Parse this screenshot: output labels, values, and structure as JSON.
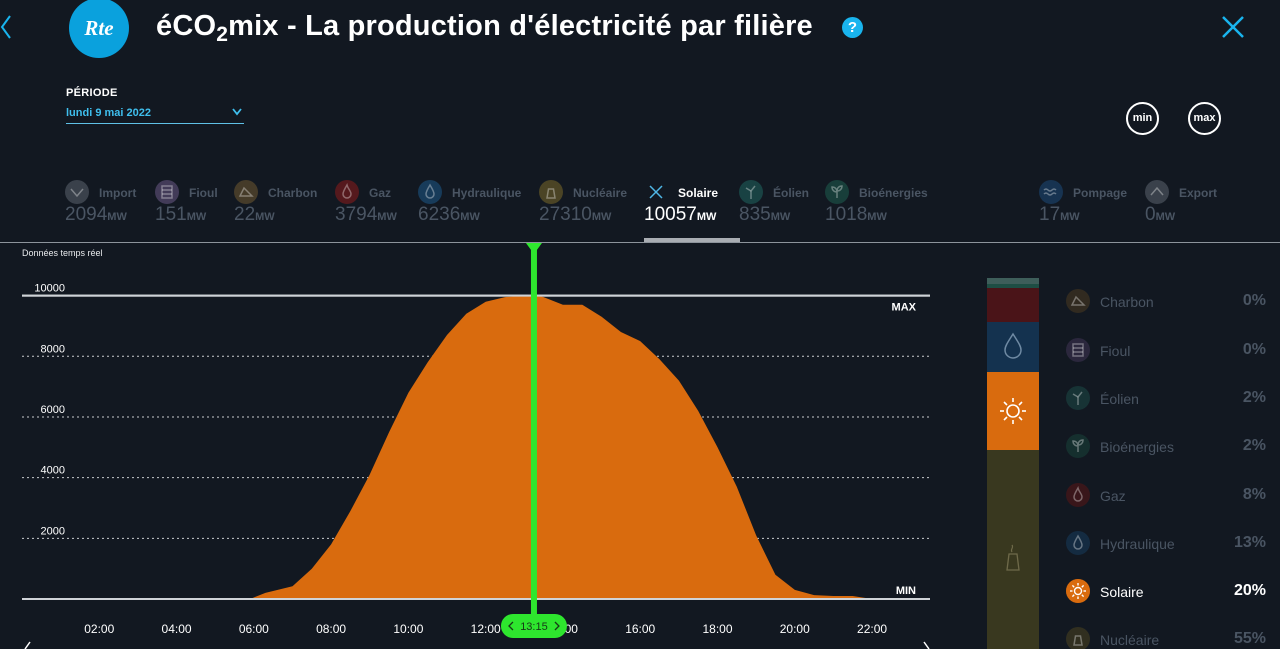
{
  "header": {
    "logo_text": "Rte",
    "title_pre": "éCO",
    "title_sub": "2",
    "title_post": "mix - La production d'électricité par filière",
    "help_label": "?"
  },
  "period": {
    "label": "PÉRIODE",
    "value": "lundi 9 mai 2022"
  },
  "buttons": {
    "min": "min",
    "max": "max"
  },
  "sources": [
    {
      "name": "Import",
      "value": "2094",
      "unit": "MW",
      "icon": "import-icon",
      "color": "#5b6470",
      "active": false
    },
    {
      "name": "Fioul",
      "value": "151",
      "unit": "MW",
      "icon": "barrel-icon",
      "color": "#6a5a86",
      "active": false
    },
    {
      "name": "Charbon",
      "value": "22",
      "unit": "MW",
      "icon": "coal-icon",
      "color": "#6f5a32",
      "active": false
    },
    {
      "name": "Gaz",
      "value": "3794",
      "unit": "MW",
      "icon": "flame-icon",
      "color": "#8c1c1c",
      "active": false
    },
    {
      "name": "Hydraulique",
      "value": "6236",
      "unit": "MW",
      "icon": "water-drop-icon",
      "color": "#1c5a8a",
      "active": false
    },
    {
      "name": "Nucléaire",
      "value": "27310",
      "unit": "MW",
      "icon": "nuclear-icon",
      "color": "#7a6a2a",
      "active": false
    },
    {
      "name": "Solaire",
      "value": "10057",
      "unit": "MW",
      "icon": "close-icon",
      "color": "#ffffff",
      "active": true
    },
    {
      "name": "Éolien",
      "value": "835",
      "unit": "MW",
      "icon": "wind-turbine-icon",
      "color": "#1f6660",
      "active": false
    },
    {
      "name": "Bioénergies",
      "value": "1018",
      "unit": "MW",
      "icon": "sprout-icon",
      "color": "#1e5e50",
      "active": false
    },
    {
      "name": "Pompage",
      "value": "17",
      "unit": "MW",
      "icon": "waves-icon",
      "color": "#1c4a7a",
      "active": false
    },
    {
      "name": "Export",
      "value": "0",
      "unit": "MW",
      "icon": "export-icon",
      "color": "#5b6470",
      "active": false
    }
  ],
  "chart_data": {
    "type": "area",
    "title": "",
    "annotation": "Données temps réel",
    "xlabel": "",
    "ylabel": "",
    "x_ticks": [
      "02:00",
      "04:00",
      "06:00",
      "08:00",
      "10:00",
      "12:00",
      "14:00",
      "16:00",
      "18:00",
      "20:00",
      "22:00"
    ],
    "y_ticks": [
      2000,
      4000,
      6000,
      8000,
      10000
    ],
    "ylim": [
      0,
      10000
    ],
    "x_range_hours": [
      0,
      23.5
    ],
    "max_label": "MAX",
    "min_label": "MIN",
    "cursor_time": "13:15",
    "cursor_hour": 13.25,
    "series": [
      {
        "color": "#d96b0e",
        "x": [
          0,
          5.9,
          6.3,
          7.0,
          7.5,
          8.0,
          8.5,
          9.0,
          9.5,
          10.0,
          10.5,
          11.0,
          11.5,
          12.0,
          12.5,
          13.0,
          13.25,
          13.5,
          14.0,
          14.5,
          15.0,
          15.5,
          16.0,
          16.5,
          17.0,
          17.5,
          18.0,
          18.5,
          19.0,
          19.5,
          20.0,
          20.5,
          21.0,
          21.5,
          22.0,
          23.5
        ],
        "y": [
          0,
          0,
          200,
          420,
          1000,
          1800,
          2900,
          4100,
          5500,
          6800,
          7800,
          8700,
          9400,
          9800,
          9950,
          10000,
          10057,
          9950,
          9700,
          9700,
          9300,
          8800,
          8500,
          7900,
          7200,
          6200,
          5000,
          3700,
          2100,
          800,
          300,
          130,
          100,
          100,
          0,
          0
        ]
      }
    ]
  },
  "mix": [
    {
      "name": "Charbon",
      "pct": "0%",
      "icon": "coal-icon",
      "color": "#4a3a20",
      "active": false
    },
    {
      "name": "Fioul",
      "pct": "0%",
      "icon": "barrel-icon",
      "color": "#3f3556",
      "active": false
    },
    {
      "name": "Éolien",
      "pct": "2%",
      "icon": "wind-turbine-icon",
      "color": "#1b4a47",
      "active": false
    },
    {
      "name": "Bioénergies",
      "pct": "2%",
      "icon": "sprout-icon",
      "color": "#18433b",
      "active": false
    },
    {
      "name": "Gaz",
      "pct": "8%",
      "icon": "flame-icon",
      "color": "#5a1616",
      "active": false
    },
    {
      "name": "Hydraulique",
      "pct": "13%",
      "icon": "water-drop-icon",
      "color": "#163c5c",
      "active": false
    },
    {
      "name": "Solaire",
      "pct": "20%",
      "icon": "sun-icon",
      "color": "#d96b0e",
      "active": true
    },
    {
      "name": "Nucléaire",
      "pct": "55%",
      "icon": "nuclear-icon",
      "color": "#4a4420",
      "active": false
    }
  ]
}
